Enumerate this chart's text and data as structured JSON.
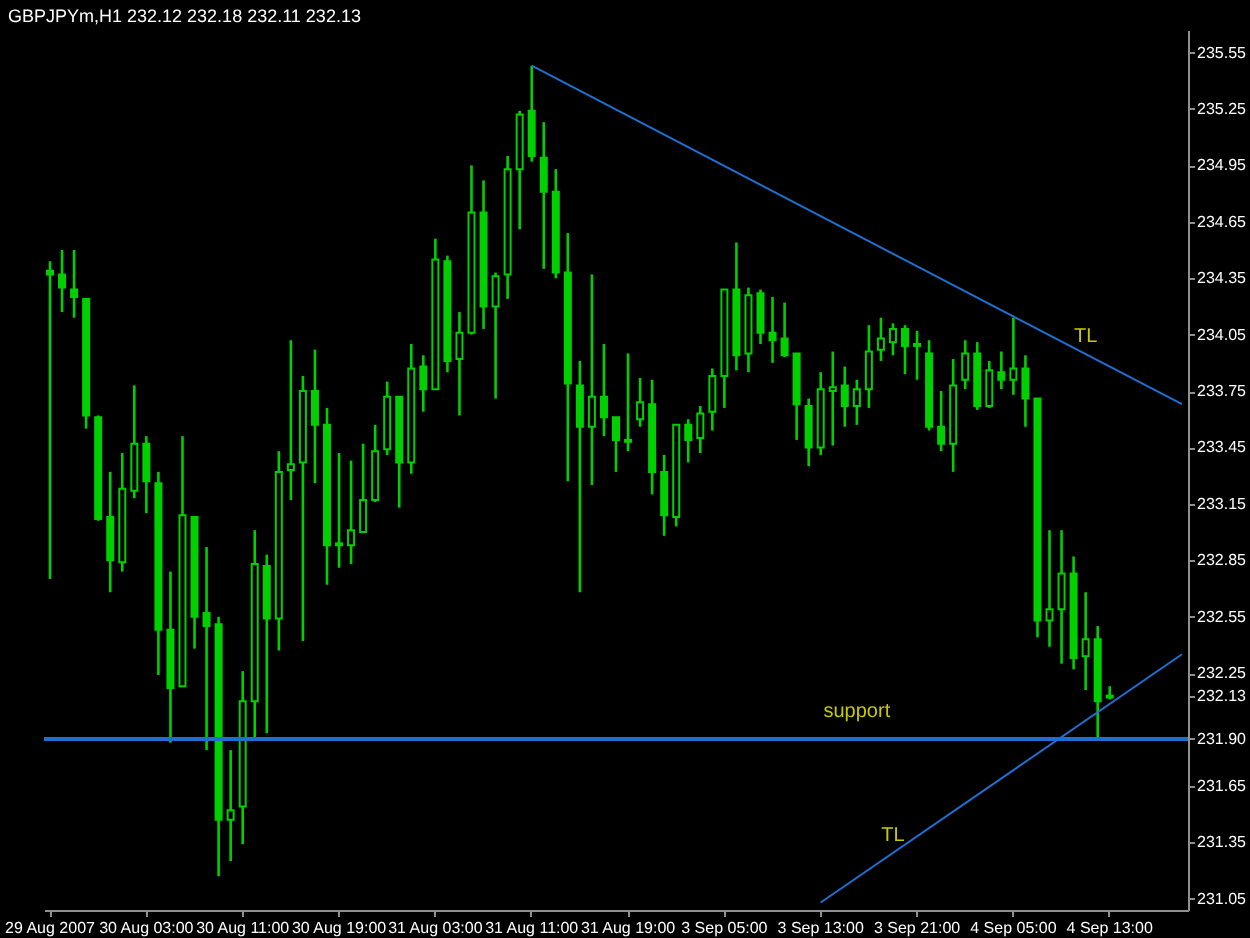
{
  "chart_data": {
    "type": "candlestick",
    "title": "GBPJPYm,H1 232.12 232.18 232.11 232.13",
    "categories": [
      "29 Aug 2007",
      null,
      null,
      null,
      null,
      null,
      null,
      null,
      "30 Aug 03:00",
      null,
      null,
      null,
      null,
      null,
      null,
      null,
      "30 Aug 11:00",
      null,
      null,
      null,
      null,
      null,
      null,
      null,
      "30 Aug 19:00",
      null,
      null,
      null,
      null,
      null,
      null,
      null,
      "31 Aug 03:00",
      null,
      null,
      null,
      null,
      null,
      null,
      null,
      "31 Aug 11:00",
      null,
      null,
      null,
      null,
      null,
      null,
      null,
      "31 Aug 19:00",
      null,
      null,
      null,
      null,
      null,
      null,
      null,
      "3 Sep 05:00",
      null,
      null,
      null,
      null,
      null,
      null,
      null,
      "3 Sep 13:00",
      null,
      null,
      null,
      null,
      null,
      null,
      null,
      "3 Sep 21:00",
      null,
      null,
      null,
      null,
      null,
      null,
      null,
      "4 Sep 05:00",
      null,
      null,
      null,
      null,
      null,
      null,
      null,
      "4 Sep 13:00",
      null,
      null,
      null,
      null,
      null,
      null
    ],
    "color": "#00d000",
    "ohlc": [
      [
        234.39,
        234.44,
        232.75,
        234.37
      ],
      [
        234.37,
        234.5,
        234.17,
        234.3
      ],
      [
        234.29,
        234.5,
        234.14,
        234.25
      ],
      [
        234.24,
        234.24,
        233.55,
        233.62
      ],
      [
        233.61,
        233.62,
        233.06,
        233.07
      ],
      [
        233.08,
        233.32,
        232.68,
        232.85
      ],
      [
        232.84,
        233.42,
        232.79,
        233.23
      ],
      [
        233.22,
        233.78,
        233.18,
        233.47
      ],
      [
        233.47,
        233.51,
        233.1,
        233.27
      ],
      [
        233.26,
        233.32,
        232.24,
        232.48
      ],
      [
        232.48,
        232.79,
        231.88,
        232.17
      ],
      [
        232.18,
        233.51,
        232.18,
        233.09
      ],
      [
        233.08,
        233.08,
        232.38,
        232.55
      ],
      [
        232.57,
        232.92,
        231.84,
        232.5
      ],
      [
        232.51,
        232.55,
        231.17,
        231.47
      ],
      [
        231.47,
        231.84,
        231.25,
        231.52
      ],
      [
        231.54,
        232.26,
        231.34,
        232.1
      ],
      [
        232.1,
        233.01,
        231.9,
        232.83
      ],
      [
        232.82,
        232.88,
        231.93,
        232.54
      ],
      [
        232.54,
        233.43,
        232.37,
        233.32
      ],
      [
        233.33,
        234.02,
        233.17,
        233.36
      ],
      [
        233.37,
        233.83,
        232.42,
        233.75
      ],
      [
        233.75,
        233.97,
        233.26,
        233.57
      ],
      [
        233.57,
        233.66,
        232.72,
        232.93
      ],
      [
        232.94,
        233.42,
        232.81,
        232.93
      ],
      [
        232.93,
        233.38,
        232.83,
        233.01
      ],
      [
        233.0,
        233.47,
        233.0,
        233.17
      ],
      [
        233.17,
        233.57,
        233.16,
        233.43
      ],
      [
        233.44,
        233.8,
        233.41,
        233.72
      ],
      [
        233.72,
        233.72,
        233.13,
        233.37
      ],
      [
        233.37,
        234.0,
        233.31,
        233.87
      ],
      [
        233.88,
        233.94,
        233.64,
        233.76
      ],
      [
        233.76,
        234.56,
        233.76,
        234.45
      ],
      [
        234.44,
        234.47,
        233.85,
        233.91
      ],
      [
        233.92,
        234.17,
        233.62,
        234.06
      ],
      [
        234.06,
        234.95,
        234.05,
        234.7
      ],
      [
        234.7,
        234.87,
        234.08,
        234.2
      ],
      [
        234.2,
        234.38,
        233.71,
        234.36
      ],
      [
        234.37,
        235.0,
        234.24,
        234.93
      ],
      [
        234.93,
        235.24,
        234.61,
        235.22
      ],
      [
        235.24,
        235.48,
        234.97,
        235.0
      ],
      [
        234.99,
        235.18,
        234.4,
        234.81
      ],
      [
        234.81,
        234.93,
        234.35,
        234.38
      ],
      [
        234.38,
        234.59,
        233.27,
        233.79
      ],
      [
        233.78,
        233.91,
        232.68,
        233.56
      ],
      [
        233.56,
        234.37,
        233.25,
        233.72
      ],
      [
        233.72,
        234.0,
        233.51,
        233.61
      ],
      [
        233.61,
        233.61,
        233.32,
        233.49
      ],
      [
        233.49,
        233.95,
        233.43,
        233.48
      ],
      [
        233.6,
        233.82,
        233.56,
        233.69
      ],
      [
        233.68,
        233.81,
        233.2,
        233.32
      ],
      [
        233.32,
        233.41,
        232.98,
        233.09
      ],
      [
        233.08,
        233.57,
        233.03,
        233.57
      ],
      [
        233.57,
        233.6,
        233.37,
        233.49
      ],
      [
        233.5,
        233.67,
        233.42,
        233.63
      ],
      [
        233.64,
        233.87,
        233.54,
        233.83
      ],
      [
        233.83,
        234.29,
        233.66,
        234.29
      ],
      [
        234.29,
        234.54,
        233.86,
        233.94
      ],
      [
        233.95,
        234.3,
        233.85,
        234.26
      ],
      [
        234.27,
        234.29,
        234.0,
        234.06
      ],
      [
        234.06,
        234.25,
        233.9,
        234.02
      ],
      [
        234.03,
        234.22,
        233.93,
        233.94
      ],
      [
        233.95,
        233.95,
        233.49,
        233.68
      ],
      [
        233.67,
        233.71,
        233.35,
        233.45
      ],
      [
        233.45,
        233.85,
        233.41,
        233.76
      ],
      [
        233.75,
        233.96,
        233.46,
        233.77
      ],
      [
        233.78,
        233.88,
        233.56,
        233.67
      ],
      [
        233.67,
        233.81,
        233.57,
        233.76
      ],
      [
        233.76,
        234.1,
        233.66,
        233.96
      ],
      [
        233.97,
        234.14,
        233.91,
        234.03
      ],
      [
        234.01,
        234.11,
        233.94,
        234.08
      ],
      [
        234.08,
        234.1,
        233.84,
        233.99
      ],
      [
        233.99,
        234.07,
        233.81,
        234.0
      ],
      [
        233.95,
        234.02,
        233.54,
        233.56
      ],
      [
        233.56,
        233.75,
        233.43,
        233.47
      ],
      [
        233.47,
        233.92,
        233.32,
        233.78
      ],
      [
        233.81,
        234.02,
        233.76,
        233.95
      ],
      [
        233.95,
        234.01,
        233.65,
        233.67
      ],
      [
        233.67,
        233.91,
        233.66,
        233.86
      ],
      [
        233.85,
        233.96,
        233.76,
        233.81
      ],
      [
        233.81,
        234.14,
        233.73,
        233.87
      ],
      [
        233.87,
        233.94,
        233.56,
        233.71
      ],
      [
        233.71,
        233.71,
        232.44,
        232.53
      ],
      [
        232.53,
        233.01,
        232.39,
        232.59
      ],
      [
        232.59,
        233.01,
        232.3,
        232.78
      ],
      [
        232.78,
        232.87,
        232.27,
        232.33
      ],
      [
        232.34,
        232.68,
        232.16,
        232.43
      ],
      [
        232.43,
        232.5,
        231.9,
        232.1
      ],
      [
        232.12,
        232.18,
        232.11,
        232.13
      ],
      null,
      null,
      null,
      null,
      null,
      null
    ],
    "series": [
      {
        "name": "TL",
        "type": "line",
        "color": "#1e6fd0",
        "values": [
          null,
          null,
          null,
          null,
          null,
          null,
          null,
          null,
          null,
          null,
          null,
          null,
          null,
          null,
          null,
          null,
          null,
          null,
          null,
          null,
          null,
          null,
          null,
          null,
          null,
          null,
          null,
          null,
          null,
          null,
          null,
          null,
          null,
          null,
          null,
          null,
          null,
          null,
          null,
          null,
          235.48,
          null,
          null,
          null,
          null,
          null,
          null,
          null,
          null,
          null,
          null,
          null,
          null,
          null,
          null,
          null,
          null,
          null,
          null,
          null,
          null,
          null,
          null,
          null,
          null,
          null,
          null,
          null,
          null,
          null,
          null,
          null,
          null,
          null,
          null,
          null,
          null,
          null,
          null,
          null,
          null,
          null,
          null,
          null,
          null,
          null,
          null,
          null,
          null,
          null,
          null,
          null,
          null,
          null,
          233.68
        ]
      },
      {
        "name": "TL",
        "type": "line",
        "color": "#1e6fd0",
        "values": [
          null,
          null,
          null,
          null,
          null,
          null,
          null,
          null,
          null,
          null,
          null,
          null,
          null,
          null,
          null,
          null,
          null,
          null,
          null,
          null,
          null,
          null,
          null,
          null,
          null,
          null,
          null,
          null,
          null,
          null,
          null,
          null,
          null,
          null,
          null,
          null,
          null,
          null,
          null,
          null,
          null,
          null,
          null,
          null,
          null,
          null,
          null,
          null,
          null,
          null,
          null,
          null,
          null,
          null,
          null,
          null,
          null,
          null,
          null,
          null,
          null,
          null,
          null,
          null,
          231.03,
          null,
          null,
          null,
          null,
          null,
          null,
          null,
          null,
          null,
          null,
          null,
          null,
          null,
          null,
          null,
          null,
          null,
          null,
          null,
          null,
          null,
          null,
          null,
          null,
          null,
          null,
          null,
          null,
          null,
          232.35
        ]
      }
    ],
    "ylim": [
      230.99,
      235.67
    ],
    "yticks": [
      231.05,
      231.35,
      231.65,
      232.25,
      232.55,
      232.85,
      233.15,
      233.45,
      233.75,
      234.05,
      234.35,
      234.65,
      234.95,
      235.25,
      235.55,
      {
        "value": 232.13,
        "label": "232.13"
      },
      {
        "value": 231.9,
        "label": "231.90"
      }
    ],
    "ref_lines": [
      {
        "axis": "y",
        "value": 231.9,
        "label": "support",
        "color": "#1e6fd0"
      }
    ]
  }
}
